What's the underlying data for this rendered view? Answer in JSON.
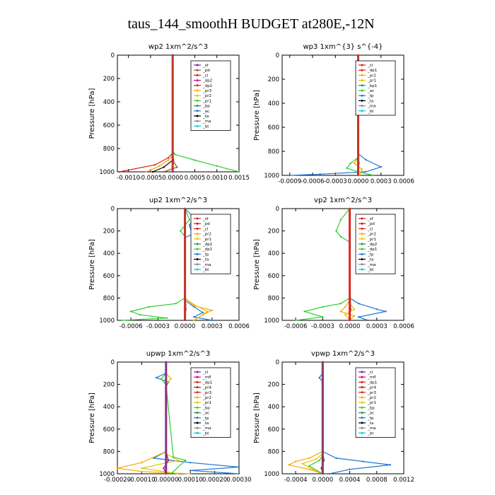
{
  "suptitle": "taus_144_smoothH  BUDGET at280E,-12N",
  "colors": {
    "brown": "#a0522d",
    "purple": "#7b1fa2",
    "red": "#e41a1c",
    "magenta": "#d6007f",
    "orange": "#ffa500",
    "yellow": "#e6c300",
    "green": "#33cc33",
    "dkgreen": "#2e8b57",
    "blue": "#1f77d4",
    "black": "#000000",
    "grey": "#888888",
    "cyan": "#00ccdd",
    "dkred": "#b22222"
  },
  "chart_data": [
    {
      "type": "line",
      "title": "wp2   1xm^2/s^3",
      "ylabel": "Pressure  [hPa]",
      "xlim": [
        -0.00125,
        0.0015
      ],
      "xticks": [
        "-0.0010",
        "-0.0005",
        "0.0000",
        "0.0005",
        "0.0010",
        "0.0015"
      ],
      "xtick_values": [
        -0.001,
        -0.0005,
        0,
        0.0005,
        0.001,
        0.0015
      ],
      "ylim": [
        1000,
        0
      ],
      "yticks": [
        0,
        200,
        400,
        600,
        800,
        1000
      ],
      "legend_pos": "top-right",
      "legend": [
        {
          "name": "_sf",
          "color": "purple"
        },
        {
          "name": "_pd",
          "color": "brown"
        },
        {
          "name": "_cl",
          "color": "red"
        },
        {
          "name": "_dp2",
          "color": "magenta"
        },
        {
          "name": "_dp1",
          "color": "red"
        },
        {
          "name": "_pr3",
          "color": "orange"
        },
        {
          "name": "_pr2",
          "color": "yellow"
        },
        {
          "name": "_pr1",
          "color": "green"
        },
        {
          "name": "_bp",
          "color": "dkgreen"
        },
        {
          "name": "_ac",
          "color": "blue"
        },
        {
          "name": "_ta",
          "color": "black"
        },
        {
          "name": "_ma",
          "color": "grey"
        },
        {
          "name": "_bt",
          "color": "cyan"
        }
      ],
      "series": [
        {
          "color": "green",
          "x": [
            0,
            0,
            5e-05,
            0.0005,
            0.001,
            0.0015
          ],
          "y": [
            0,
            820,
            850,
            900,
            950,
            1000
          ]
        },
        {
          "color": "red",
          "x": [
            0,
            0,
            -0.0001,
            -0.0004,
            -0.0012
          ],
          "y": [
            0,
            840,
            880,
            940,
            1000
          ]
        },
        {
          "color": "orange",
          "x": [
            0,
            0,
            -0.0001,
            -0.0003,
            -0.0006
          ],
          "y": [
            0,
            860,
            900,
            950,
            1000
          ]
        },
        {
          "color": "black",
          "x": [
            0,
            0,
            -0.0002,
            -0.00045
          ],
          "y": [
            0,
            900,
            960,
            1000
          ]
        },
        {
          "color": "brown",
          "x": [
            0,
            0,
            0.0001,
            -0.0002
          ],
          "y": [
            0,
            900,
            960,
            1000
          ]
        },
        {
          "color": "purple",
          "x": [
            0,
            0,
            2e-05,
            0.0
          ],
          "y": [
            0,
            800,
            900,
            1000
          ]
        }
      ]
    },
    {
      "type": "line",
      "title": "wp3   1xm^{3} s^{-4}",
      "ylabel": "Pressure  [hPa]",
      "xlim": [
        -0.001,
        0.0006
      ],
      "xticks": [
        "-0.0009",
        "-0.0006",
        "-0.0003",
        "0.0000",
        "0.0003",
        "0.0006"
      ],
      "xtick_values": [
        -0.0009,
        -0.0006,
        -0.0003,
        0,
        0.0003,
        0.0006
      ],
      "ylim": [
        1000,
        0
      ],
      "yticks": [
        0,
        200,
        400,
        600,
        800,
        1000
      ],
      "legend_pos": "top-right",
      "legend": [
        {
          "name": "_cl",
          "color": "red"
        },
        {
          "name": "_dp1",
          "color": "red"
        },
        {
          "name": "_pr2",
          "color": "orange"
        },
        {
          "name": "_pr1",
          "color": "yellow"
        },
        {
          "name": "_bp1",
          "color": "dkgreen"
        },
        {
          "name": "_ac",
          "color": "green"
        },
        {
          "name": "_tp",
          "color": "blue"
        },
        {
          "name": "_ta",
          "color": "black"
        },
        {
          "name": "_ma",
          "color": "grey"
        },
        {
          "name": "_bt",
          "color": "cyan"
        }
      ],
      "series": [
        {
          "color": "blue",
          "x": [
            0,
            0,
            0.0001,
            0.0003,
            0.0001,
            -0.0005,
            -0.0009
          ],
          "y": [
            0,
            820,
            870,
            930,
            970,
            990,
            1000
          ]
        },
        {
          "color": "green",
          "x": [
            0,
            0,
            -0.0001,
            -0.00015,
            0,
            0.0002
          ],
          "y": [
            0,
            850,
            900,
            940,
            970,
            1000
          ]
        },
        {
          "color": "orange",
          "x": [
            0,
            0,
            -5e-05,
            5e-05,
            2e-05
          ],
          "y": [
            0,
            850,
            900,
            950,
            1000
          ]
        },
        {
          "color": "red",
          "x": [
            0,
            0,
            1e-05,
            0
          ],
          "y": [
            0,
            500,
            900,
            1000
          ]
        }
      ]
    },
    {
      "type": "line",
      "title": "up2   1xm^2/s^3",
      "ylabel": "Pressure  [hPa]",
      "xlim": [
        -0.00075,
        0.0006
      ],
      "xticks": [
        "-0.0006",
        "-0.0003",
        "0.0000",
        "0.0003",
        "0.0006"
      ],
      "xtick_values": [
        -0.0006,
        -0.0003,
        0,
        0.0003,
        0.0006
      ],
      "ylim": [
        1000,
        0
      ],
      "yticks": [
        0,
        200,
        400,
        600,
        800,
        1000
      ],
      "legend_pos": "top-right",
      "legend": [
        {
          "name": "_sf",
          "color": "red"
        },
        {
          "name": "_pd",
          "color": "dkred"
        },
        {
          "name": "_cl",
          "color": "red"
        },
        {
          "name": "_pr2",
          "color": "orange"
        },
        {
          "name": "_pr1",
          "color": "yellow"
        },
        {
          "name": "_dp2",
          "color": "dkgreen"
        },
        {
          "name": "_dp1",
          "color": "green"
        },
        {
          "name": "_tp",
          "color": "blue"
        },
        {
          "name": "_ta",
          "color": "black"
        },
        {
          "name": "_ma",
          "color": "grey"
        },
        {
          "name": "_bt",
          "color": "cyan"
        }
      ],
      "series": [
        {
          "color": "green",
          "x": [
            0,
            5e-05,
            -5e-05,
            0,
            0,
            -0.0001,
            -0.0004,
            -0.0006,
            -0.0005,
            -0.0002,
            -0.0007
          ],
          "y": [
            0,
            100,
            200,
            250,
            800,
            850,
            880,
            920,
            950,
            980,
            1000
          ]
        },
        {
          "color": "blue",
          "x": [
            0,
            0.0001,
            5e-05,
            8e-05,
            0,
            0,
            0.0001,
            0.0002,
            0.0001,
            0.0003
          ],
          "y": [
            0,
            80,
            150,
            230,
            260,
            820,
            880,
            930,
            970,
            1000
          ]
        },
        {
          "color": "orange",
          "x": [
            0,
            0,
            0.0001,
            0.0003,
            0.0002,
            0.0001
          ],
          "y": [
            0,
            800,
            870,
            910,
            950,
            1000
          ]
        },
        {
          "color": "yellow",
          "x": [
            0,
            0,
            0.0001,
            0.00025,
            0.0001
          ],
          "y": [
            0,
            800,
            860,
            920,
            1000
          ]
        },
        {
          "color": "dkred",
          "x": [
            0,
            0,
            1e-05,
            0
          ],
          "y": [
            0,
            500,
            900,
            1000
          ]
        }
      ]
    },
    {
      "type": "line",
      "title": "vp2   1xm^2/s^3",
      "ylabel": "Pressure  [hPa]",
      "xlim": [
        -0.00075,
        0.0006
      ],
      "xticks": [
        "-0.0006",
        "-0.0003",
        "0.0000",
        "0.0003",
        "0.0006"
      ],
      "xtick_values": [
        -0.0006,
        -0.0003,
        0,
        0.0003,
        0.0006
      ],
      "ylim": [
        1000,
        0
      ],
      "yticks": [
        0,
        200,
        400,
        600,
        800,
        1000
      ],
      "legend_pos": "top-right",
      "legend": [
        {
          "name": "_sf",
          "color": "red"
        },
        {
          "name": "_pd",
          "color": "dkred"
        },
        {
          "name": "_cl",
          "color": "red"
        },
        {
          "name": "_pr2",
          "color": "orange"
        },
        {
          "name": "_pr1",
          "color": "yellow"
        },
        {
          "name": "_dp2",
          "color": "dkgreen"
        },
        {
          "name": "_dp1",
          "color": "green"
        },
        {
          "name": "_tp",
          "color": "blue"
        },
        {
          "name": "_ta",
          "color": "black"
        },
        {
          "name": "_ma",
          "color": "grey"
        },
        {
          "name": "_bt",
          "color": "cyan"
        }
      ],
      "series": [
        {
          "color": "green",
          "x": [
            0,
            -0.0001,
            -0.00015,
            -0.0001,
            0,
            0,
            -0.0001,
            -0.0003,
            -0.0005,
            -0.0003,
            -0.0006
          ],
          "y": [
            0,
            100,
            200,
            250,
            300,
            800,
            850,
            880,
            920,
            970,
            1000
          ]
        },
        {
          "color": "blue",
          "x": [
            0,
            0,
            0.0001,
            0.0003,
            0.0004,
            0.0001,
            0.0002
          ],
          "y": [
            0,
            800,
            850,
            900,
            920,
            970,
            1000
          ]
        },
        {
          "color": "orange",
          "x": [
            0,
            0,
            -5e-05,
            -0.0001,
            5e-05,
            0
          ],
          "y": [
            0,
            820,
            880,
            920,
            960,
            1000
          ]
        },
        {
          "color": "yellow",
          "x": [
            0,
            0,
            5e-05,
            -5e-05,
            0
          ],
          "y": [
            0,
            850,
            900,
            950,
            1000
          ]
        },
        {
          "color": "dkred",
          "x": [
            0,
            0,
            1e-05,
            0
          ],
          "y": [
            0,
            500,
            900,
            1000
          ]
        }
      ]
    },
    {
      "type": "line",
      "title": "upwp   1xm^2/s^3",
      "ylabel": "Pressure  [hPa]",
      "xlim": [
        -0.0002,
        0.0003
      ],
      "xticks": [
        "-0.00020",
        "-0.00010",
        "0.00000",
        "0.00010",
        "0.00020",
        "0.00030"
      ],
      "xtick_values": [
        -0.0002,
        -0.0001,
        0,
        0.0001,
        0.0002,
        0.0003
      ],
      "ylim": [
        1000,
        0
      ],
      "yticks": [
        0,
        200,
        400,
        600,
        800,
        1000
      ],
      "legend_pos": "top-right",
      "legend": [
        {
          "name": "_cl",
          "color": "purple"
        },
        {
          "name": "_mfl",
          "color": "magenta"
        },
        {
          "name": "_dp1",
          "color": "red"
        },
        {
          "name": "_pr4",
          "color": "dkred"
        },
        {
          "name": "_pr3",
          "color": "red"
        },
        {
          "name": "_pr2",
          "color": "orange"
        },
        {
          "name": "_pr1",
          "color": "yellow"
        },
        {
          "name": "_bp",
          "color": "green"
        },
        {
          "name": "_ac",
          "color": "dkgreen"
        },
        {
          "name": "_tp",
          "color": "blue"
        },
        {
          "name": "_ta",
          "color": "black"
        },
        {
          "name": "_ma",
          "color": "grey"
        },
        {
          "name": "_bt",
          "color": "cyan"
        }
      ],
      "series": [
        {
          "color": "blue",
          "x": [
            0,
            0,
            -4e-05,
            1e-05,
            0,
            0,
            -5e-05,
            0.0001,
            0.0003,
            0.0001,
            0.0003
          ],
          "y": [
            0,
            100,
            140,
            180,
            220,
            800,
            860,
            900,
            940,
            970,
            1000
          ]
        },
        {
          "color": "orange",
          "x": [
            0,
            0,
            2e-05,
            0,
            0,
            -0.0001,
            -0.0002,
            -0.0001,
            0.0001
          ],
          "y": [
            0,
            100,
            150,
            200,
            800,
            900,
            950,
            980,
            1000
          ]
        },
        {
          "color": "yellow",
          "x": [
            0,
            0,
            2e-05,
            0,
            0,
            5e-05,
            -0.0001,
            5e-05
          ],
          "y": [
            0,
            100,
            150,
            200,
            820,
            880,
            950,
            1000
          ]
        },
        {
          "color": "green",
          "x": [
            0,
            0,
            -2e-05,
            0,
            3e-05,
            8e-05,
            2e-05
          ],
          "y": [
            0,
            100,
            150,
            200,
            850,
            880,
            1000
          ]
        },
        {
          "color": "purple",
          "x": [
            0,
            0,
            1e-05,
            -1e-05,
            0
          ],
          "y": [
            0,
            800,
            880,
            950,
            1000
          ]
        }
      ]
    },
    {
      "type": "line",
      "title": "vpwp   1xm^2/s^3",
      "ylabel": "Pressure  [hPa]",
      "xlim": [
        -0.0006,
        0.0012
      ],
      "xticks": [
        "-0.0004",
        "0.0000",
        "0.0004",
        "0.0008",
        "0.0012"
      ],
      "xtick_values": [
        -0.0004,
        0,
        0.0004,
        0.0008,
        0.0012
      ],
      "ylim": [
        1000,
        0
      ],
      "yticks": [
        0,
        200,
        400,
        600,
        800,
        1000
      ],
      "legend_pos": "top-right",
      "legend": [
        {
          "name": "_cl",
          "color": "purple"
        },
        {
          "name": "_mfl",
          "color": "magenta"
        },
        {
          "name": "_dp1",
          "color": "red"
        },
        {
          "name": "_pr4",
          "color": "dkred"
        },
        {
          "name": "_pr3",
          "color": "red"
        },
        {
          "name": "_pr2",
          "color": "orange"
        },
        {
          "name": "_pr1",
          "color": "yellow"
        },
        {
          "name": "_bp",
          "color": "green"
        },
        {
          "name": "_ac",
          "color": "dkgreen"
        },
        {
          "name": "_tp",
          "color": "blue"
        },
        {
          "name": "_ta",
          "color": "black"
        },
        {
          "name": "_ma",
          "color": "grey"
        },
        {
          "name": "_bt",
          "color": "cyan"
        }
      ],
      "series": [
        {
          "color": "blue",
          "x": [
            0,
            0,
            -5e-05,
            0,
            0,
            0.0002,
            0.0006,
            0.001,
            0.0004,
            0.0001
          ],
          "y": [
            0,
            100,
            140,
            180,
            800,
            860,
            890,
            920,
            960,
            1000
          ]
        },
        {
          "color": "orange",
          "x": [
            0,
            0,
            -0.0002,
            -0.0004,
            -0.0005,
            -0.0002,
            0
          ],
          "y": [
            0,
            800,
            860,
            890,
            920,
            960,
            1000
          ]
        },
        {
          "color": "yellow",
          "x": [
            0,
            0,
            -0.0001,
            -0.0003,
            -0.00015,
            0
          ],
          "y": [
            0,
            820,
            870,
            910,
            960,
            1000
          ]
        },
        {
          "color": "green",
          "x": [
            0,
            0,
            -5e-05,
            -0.0002,
            0
          ],
          "y": [
            0,
            840,
            880,
            930,
            1000
          ]
        },
        {
          "color": "purple",
          "x": [
            0,
            0,
            2e-05,
            -2e-05,
            0
          ],
          "y": [
            0,
            800,
            880,
            950,
            1000
          ]
        }
      ]
    }
  ]
}
